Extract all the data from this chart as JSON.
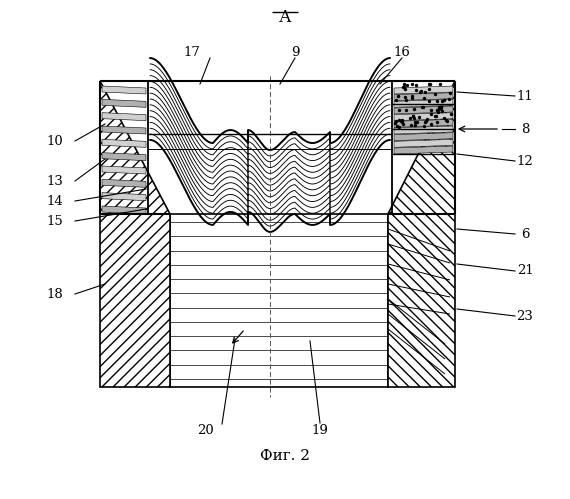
{
  "title": "А",
  "fig_label": "Фиг. 2",
  "bg_color": "#ffffff",
  "lc": "#000000",
  "labels": [
    [
      "10",
      55,
      358
    ],
    [
      "17",
      192,
      445
    ],
    [
      "9",
      295,
      447
    ],
    [
      "16",
      402,
      447
    ],
    [
      "11",
      525,
      403
    ],
    [
      "8",
      525,
      370
    ],
    [
      "12",
      525,
      338
    ],
    [
      "13",
      55,
      318
    ],
    [
      "14",
      55,
      298
    ],
    [
      "15",
      55,
      277
    ],
    [
      "6",
      525,
      265
    ],
    [
      "18",
      55,
      205
    ],
    [
      "21",
      525,
      228
    ],
    [
      "20",
      205,
      68
    ],
    [
      "19",
      320,
      68
    ],
    [
      "23",
      525,
      183
    ]
  ]
}
